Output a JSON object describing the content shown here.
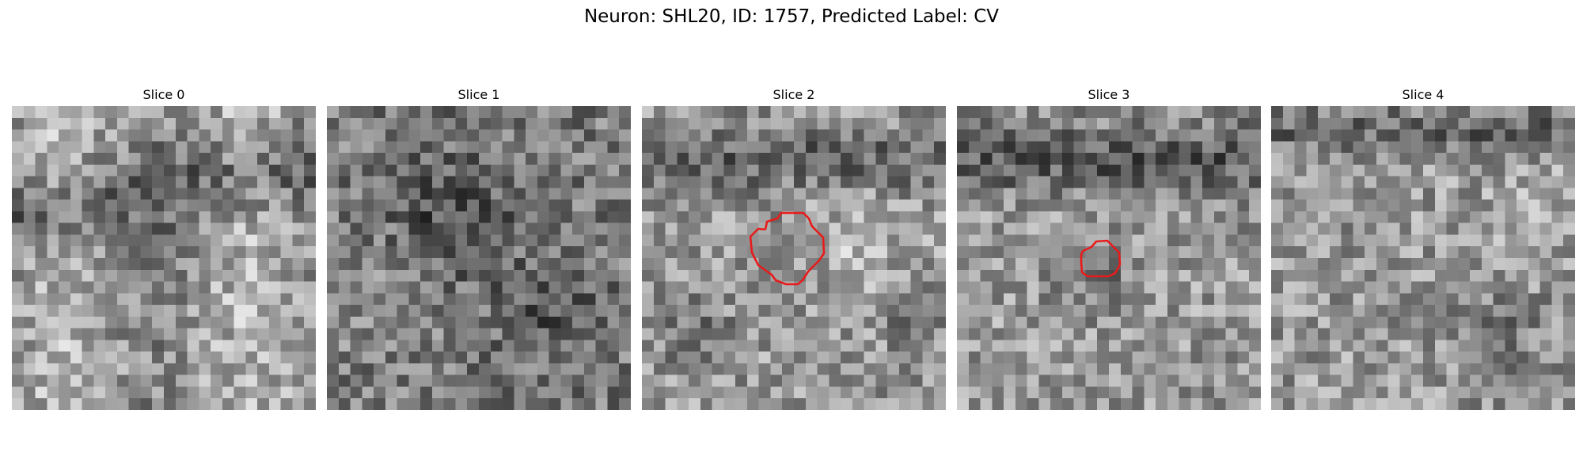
{
  "figure": {
    "title": "Neuron: SHL20, ID: 1757, Predicted Label: CV"
  },
  "panels": [
    {
      "title": "Slice 0",
      "has_contour": false
    },
    {
      "title": "Slice 1",
      "has_contour": false
    },
    {
      "title": "Slice 2",
      "has_contour": true
    },
    {
      "title": "Slice 3",
      "has_contour": true
    },
    {
      "title": "Slice 4",
      "has_contour": false
    }
  ],
  "colors": {
    "contour": "#e81b1b",
    "background": "#ffffff",
    "colormap": "gray"
  }
}
